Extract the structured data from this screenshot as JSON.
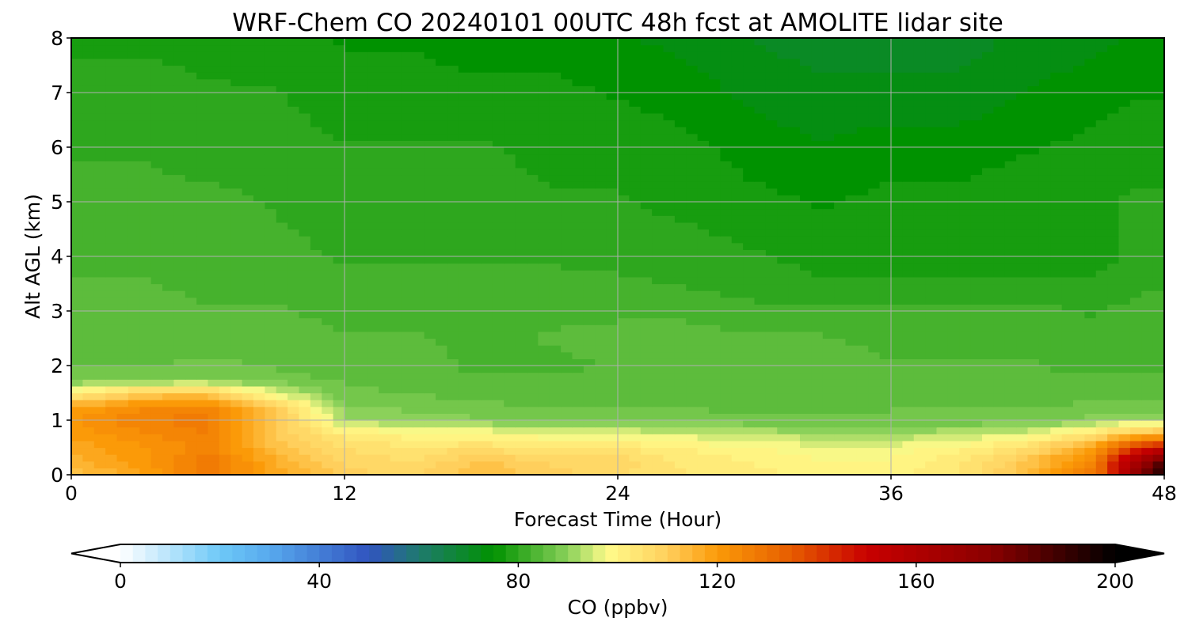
{
  "chart_data": {
    "type": "contourf",
    "title": "WRF-Chem CO  20240101 00UTC 48h fcst at AMOLITE lidar site",
    "xlabel": "Forecast Time (Hour)",
    "ylabel": "Alt AGL (km)",
    "xlim": [
      0,
      48
    ],
    "ylim": [
      0,
      8
    ],
    "xticks": [
      0,
      12,
      24,
      36,
      48
    ],
    "yticks": [
      0,
      1,
      2,
      3,
      4,
      5,
      6,
      7,
      8
    ],
    "grid": true,
    "x": [
      0,
      3,
      6,
      9,
      12,
      15,
      18,
      21,
      24,
      27,
      30,
      33,
      36,
      39,
      42,
      45,
      46.5,
      48
    ],
    "y": [
      0,
      0.25,
      0.5,
      0.75,
      1.0,
      1.25,
      1.5,
      1.75,
      2.0,
      2.5,
      3.0,
      3.5,
      4.0,
      5.0,
      6.0,
      7.0,
      8.0
    ],
    "z": [
      [
        112,
        118,
        128,
        118,
        110,
        108,
        114,
        110,
        106,
        104,
        102,
        100,
        100,
        104,
        114,
        128,
        165,
        200
      ],
      [
        115,
        120,
        128,
        116,
        108,
        106,
        112,
        108,
        108,
        103,
        101,
        99,
        99,
        103,
        112,
        126,
        160,
        185
      ],
      [
        117,
        121,
        125,
        113,
        106,
        104,
        106,
        103,
        104,
        101,
        99,
        97,
        97,
        100,
        106,
        120,
        140,
        150
      ],
      [
        119,
        123,
        126,
        110,
        103,
        100,
        99,
        97,
        96,
        95,
        93,
        92,
        92,
        93,
        96,
        105,
        112,
        115
      ],
      [
        121,
        126,
        128,
        113,
        92,
        90,
        89,
        88,
        88,
        88,
        87,
        87,
        87,
        87,
        87,
        90,
        92,
        92
      ],
      [
        118,
        123,
        124,
        110,
        89,
        88,
        87,
        86,
        86,
        86,
        85,
        85,
        86,
        86,
        86,
        87,
        87,
        87
      ],
      [
        100,
        110,
        112,
        95,
        87,
        86,
        85,
        84,
        85,
        86,
        85,
        85,
        85,
        86,
        85,
        85,
        85,
        86
      ],
      [
        88,
        88,
        88,
        87,
        86,
        85,
        84,
        84,
        85,
        86,
        86,
        85,
        85,
        85,
        84,
        84,
        84,
        84
      ],
      [
        86,
        86,
        87,
        86,
        85,
        85,
        83,
        83,
        84,
        85,
        86,
        85,
        84,
        84,
        84,
        83,
        83,
        83
      ],
      [
        85,
        85,
        85,
        85,
        84,
        84,
        83,
        84,
        85,
        85,
        84,
        84,
        83,
        83,
        83,
        82,
        82,
        82
      ],
      [
        85,
        85,
        84,
        84,
        83,
        83,
        83,
        83,
        83,
        83,
        82,
        82,
        82,
        82,
        82,
        81,
        82,
        83
      ],
      [
        84,
        84,
        83,
        83,
        82,
        82,
        82,
        82,
        82,
        81,
        80,
        79,
        79,
        79,
        79,
        79,
        80,
        81
      ],
      [
        83,
        83,
        82,
        82,
        81,
        81,
        81,
        81,
        80,
        80,
        79,
        78,
        78,
        78,
        78,
        78,
        79,
        80
      ],
      [
        82,
        82,
        82,
        81,
        80,
        80,
        80,
        79,
        79,
        78,
        77,
        76,
        77,
        77,
        78,
        78,
        79,
        79
      ],
      [
        81,
        81,
        80,
        80,
        79,
        79,
        79,
        78,
        78,
        77,
        75,
        74,
        75,
        75,
        76,
        77,
        78,
        78
      ],
      [
        80,
        80,
        79,
        79,
        77,
        77,
        77,
        77,
        76,
        75,
        73,
        72,
        72,
        72,
        74,
        75,
        76,
        76
      ],
      [
        78,
        78,
        78,
        77,
        76,
        76,
        75,
        75,
        74,
        73,
        71,
        70,
        70,
        70,
        72,
        73,
        74,
        74
      ]
    ],
    "colorbar": {
      "label": "CO  (ppbv)",
      "min": 0,
      "max": 200,
      "ticks": [
        0,
        40,
        80,
        120,
        160,
        200
      ],
      "extend": "both",
      "stops": [
        {
          "v": 0,
          "c": "#ffffff"
        },
        {
          "v": 20,
          "c": "#6ec9f7"
        },
        {
          "v": 30,
          "c": "#57a9ee"
        },
        {
          "v": 50,
          "c": "#3154bf"
        },
        {
          "v": 60,
          "c": "#1f7a6e"
        },
        {
          "v": 75,
          "c": "#009200"
        },
        {
          "v": 90,
          "c": "#8bd15a"
        },
        {
          "v": 98,
          "c": "#fffb8a"
        },
        {
          "v": 110,
          "c": "#ffcf5c"
        },
        {
          "v": 120,
          "c": "#fb9a08"
        },
        {
          "v": 135,
          "c": "#e65c00"
        },
        {
          "v": 150,
          "c": "#c80000"
        },
        {
          "v": 175,
          "c": "#8a0000"
        },
        {
          "v": 200,
          "c": "#000000"
        }
      ]
    }
  }
}
